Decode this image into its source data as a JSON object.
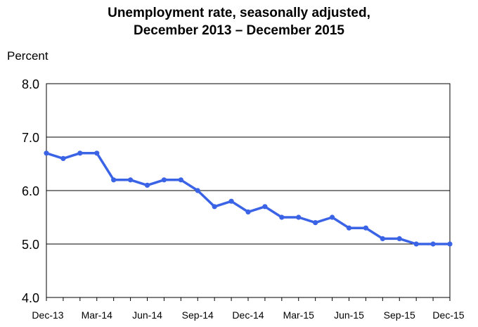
{
  "chart_data": {
    "type": "line",
    "title_line1": "Unemployment rate, seasonally adjusted,",
    "title_line2": "December 2013 – December 2015",
    "ylabel": "Percent",
    "xlabel": "",
    "ylim": [
      4.0,
      8.0
    ],
    "yticks": [
      "4.0",
      "5.0",
      "6.0",
      "7.0",
      "8.0"
    ],
    "grid": true,
    "x_tick_labels": [
      "Dec-13",
      "Mar-14",
      "Jun-14",
      "Sep-14",
      "Dec-14",
      "Mar-15",
      "Jun-15",
      "Sep-15",
      "Dec-15"
    ],
    "months": [
      "Dec-13",
      "Jan-14",
      "Feb-14",
      "Mar-14",
      "Apr-14",
      "May-14",
      "Jun-14",
      "Jul-14",
      "Aug-14",
      "Sep-14",
      "Oct-14",
      "Nov-14",
      "Dec-14",
      "Jan-15",
      "Feb-15",
      "Mar-15",
      "Apr-15",
      "May-15",
      "Jun-15",
      "Jul-15",
      "Aug-15",
      "Sep-15",
      "Oct-15",
      "Nov-15",
      "Dec-15"
    ],
    "series": [
      {
        "name": "Unemployment rate",
        "color": "#3b63e6",
        "values": [
          6.7,
          6.6,
          6.7,
          6.7,
          6.2,
          6.2,
          6.1,
          6.2,
          6.2,
          6.0,
          5.7,
          5.8,
          5.6,
          5.7,
          5.5,
          5.5,
          5.4,
          5.5,
          5.3,
          5.3,
          5.1,
          5.1,
          5.0,
          5.0,
          5.0
        ]
      }
    ]
  }
}
